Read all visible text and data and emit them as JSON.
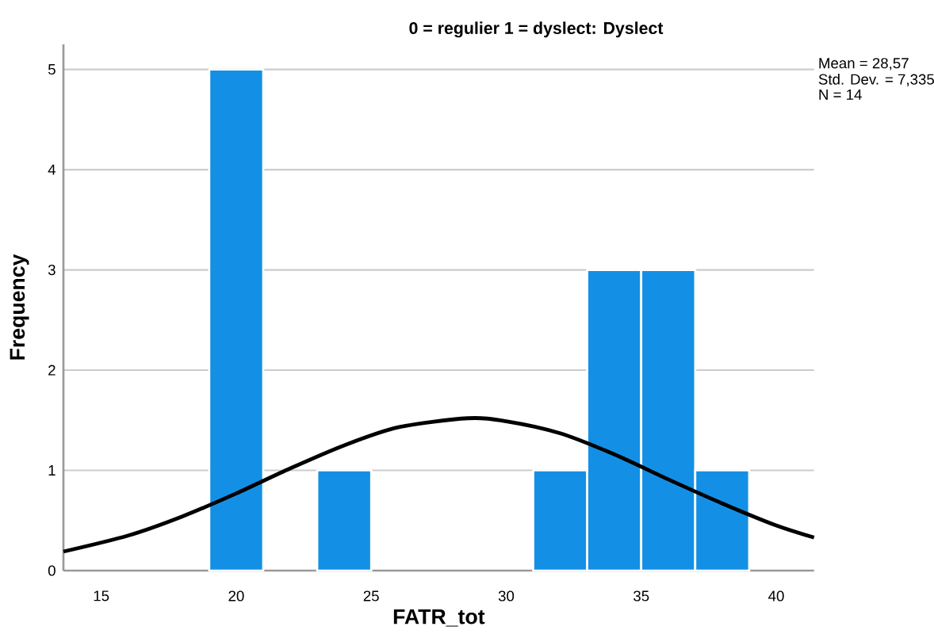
{
  "chart_data": {
    "type": "histogram",
    "title": "0 = regulier 1 = dyslect: Dyslect",
    "xlabel": "FATR_tot",
    "ylabel": "Frequency",
    "bins": [
      19,
      21,
      23,
      25,
      27,
      29,
      31,
      33,
      35,
      37,
      39
    ],
    "values": [
      5,
      0,
      1,
      0,
      0,
      0,
      1,
      3,
      3,
      1
    ],
    "color": "#1390e6",
    "xlim": [
      13.6,
      41.4
    ],
    "ylim": [
      0,
      5.25
    ],
    "xticks": [
      15,
      20,
      25,
      30,
      35,
      40
    ],
    "yticks": [
      0,
      1,
      2,
      3,
      4,
      5
    ],
    "grid": "y",
    "annotations": [
      "Mean = 28,57",
      "Std. Dev. = 7,335",
      "N = 14"
    ],
    "series": [
      {
        "type": "line",
        "color": "#000000",
        "x": [
          13.6,
          16,
          18,
          20,
          22,
          24,
          26,
          28.57,
          30,
          32,
          34,
          36,
          38,
          40,
          41.4
        ],
        "values": [
          0.19,
          0.35,
          0.54,
          0.77,
          1.02,
          1.25,
          1.43,
          1.52,
          1.49,
          1.37,
          1.16,
          0.91,
          0.67,
          0.45,
          0.33
        ]
      }
    ]
  }
}
